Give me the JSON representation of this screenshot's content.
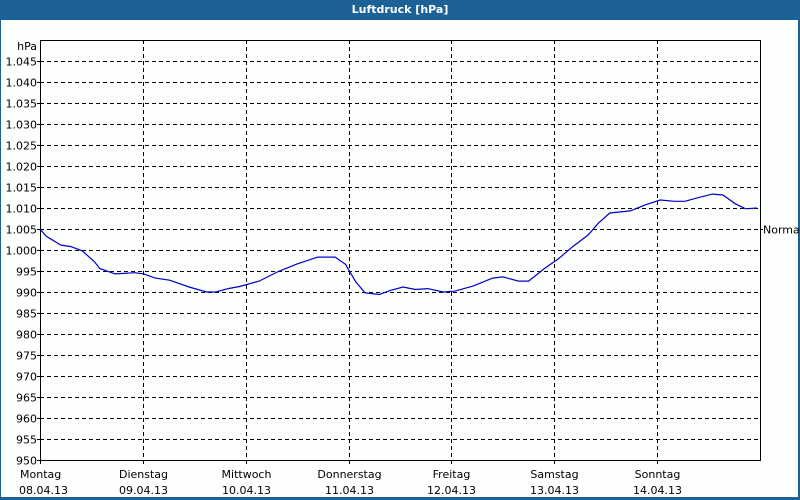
{
  "header": {
    "title": "Luftdruck [hPa]"
  },
  "colors": {
    "header_bg": "#1c6297",
    "line": "#0000c8",
    "background": "#fdfffd",
    "grid": "#000000"
  },
  "chart_data": {
    "type": "line",
    "title": "Luftdruck [hPa]",
    "ylabel": "hPa",
    "xlabel": "",
    "ylim": [
      950,
      1050
    ],
    "grid": true,
    "y_ticks": [
      "1.045",
      "1.040",
      "1.035",
      "1.030",
      "1.025",
      "1.020",
      "1.015",
      "1.010",
      "1.005",
      "1.000",
      "995",
      "990",
      "985",
      "980",
      "975",
      "970",
      "965",
      "960",
      "955",
      "950"
    ],
    "x_ticks": [
      {
        "day": "Montag",
        "date": "08.04.13"
      },
      {
        "day": "Dienstag",
        "date": "09.04.13"
      },
      {
        "day": "Mittwoch",
        "date": "10.04.13"
      },
      {
        "day": "Donnerstag",
        "date": "11.04.13"
      },
      {
        "day": "Freitag",
        "date": "12.04.13"
      },
      {
        "day": "Samstag",
        "date": "13.04.13"
      },
      {
        "day": "Sonntag",
        "date": "14.04.13"
      }
    ],
    "annotations": [
      {
        "label": "Normal",
        "value": 1005
      }
    ],
    "series": [
      {
        "name": "Luftdruck",
        "x_days": [
          0,
          0.06,
          0.2,
          0.3,
          0.41,
          0.53,
          0.58,
          0.73,
          0.92,
          1.01,
          1.12,
          1.26,
          1.45,
          1.62,
          1.71,
          1.83,
          1.94,
          2.13,
          2.32,
          2.5,
          2.7,
          2.87,
          2.97,
          3.07,
          3.16,
          3.3,
          3.41,
          3.53,
          3.65,
          3.77,
          3.92,
          4.03,
          4.21,
          4.4,
          4.5,
          4.65,
          4.75,
          4.9,
          5.04,
          5.18,
          5.33,
          5.43,
          5.54,
          5.74,
          5.88,
          6.03,
          6.17,
          6.27,
          6.42,
          6.54,
          6.64,
          6.76,
          6.86,
          6.97
        ],
        "values": [
          1005,
          1003.3,
          1001.2,
          1000.8,
          999.8,
          997.2,
          995.6,
          994.3,
          994.6,
          994.3,
          993.3,
          992.8,
          991.2,
          990.0,
          990.0,
          990.8,
          991.3,
          992.6,
          994.9,
          996.7,
          998.3,
          998.3,
          996.6,
          992.4,
          989.8,
          989.4,
          990.4,
          991.2,
          990.6,
          990.8,
          990.0,
          990.2,
          991.4,
          993.3,
          993.6,
          992.6,
          992.6,
          995.5,
          997.9,
          1000.8,
          1003.6,
          1006.4,
          1008.8,
          1009.3,
          1010.7,
          1011.9,
          1011.6,
          1011.6,
          1012.6,
          1013.3,
          1013.1,
          1011.0,
          1009.8,
          1010.0
        ]
      }
    ]
  }
}
